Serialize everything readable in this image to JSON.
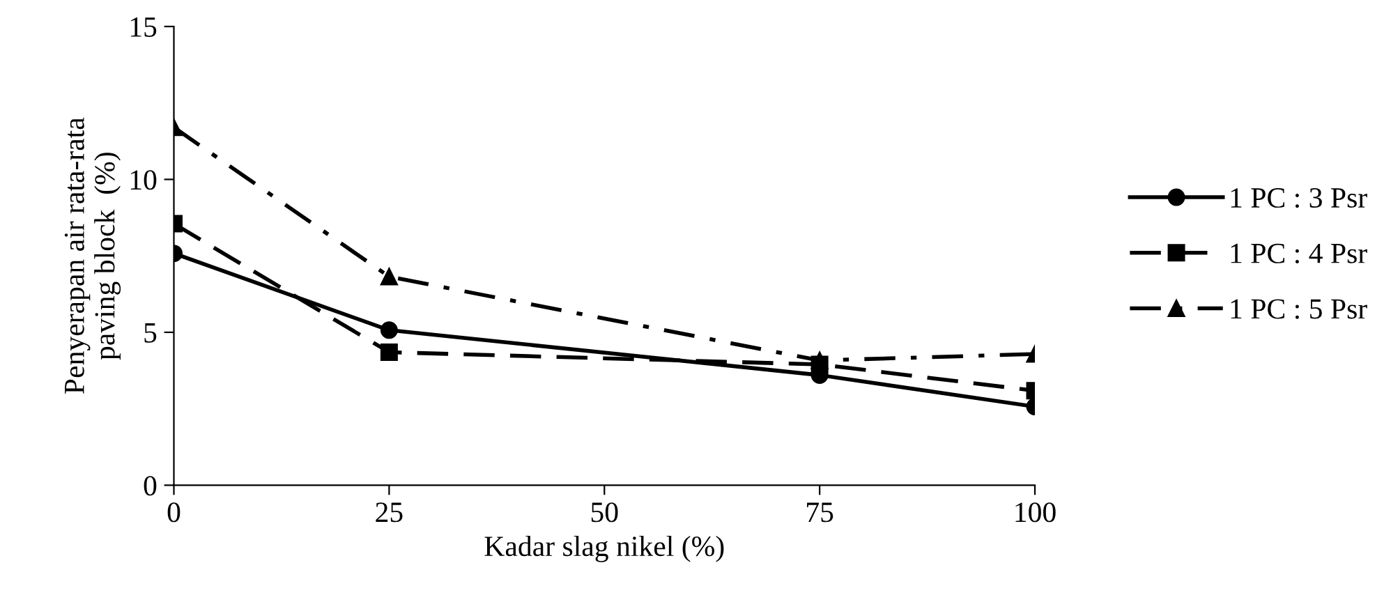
{
  "chart_data": {
    "type": "line",
    "xlabel": "Kadar slag nikel (%)",
    "ylabel": "Penyerapan air rata-rata\npaving block  (%)",
    "x": [
      0,
      25,
      75,
      100
    ],
    "series": [
      {
        "name": "1 PC : 3 Psr",
        "color": "#000000",
        "marker": "circle",
        "line_style": "solid",
        "values": [
          7.58,
          5.07,
          3.6,
          2.57
        ]
      },
      {
        "name": "1 PC : 4 Psr",
        "color": "#000000",
        "marker": "square",
        "line_style": "dashed",
        "values": [
          8.55,
          4.35,
          3.95,
          3.09
        ]
      },
      {
        "name": "1 PC : 5 Psr",
        "color": "#000000",
        "marker": "triangle",
        "line_style": "dashdot",
        "values": [
          11.7,
          6.82,
          4.08,
          4.29
        ]
      }
    ],
    "xlim": [
      0,
      100
    ],
    "xticks": [
      0,
      25,
      50,
      75,
      100
    ],
    "ylim": [
      0,
      15
    ],
    "yticks": [
      0,
      5,
      10,
      15
    ],
    "grid": false,
    "legend": "right"
  }
}
